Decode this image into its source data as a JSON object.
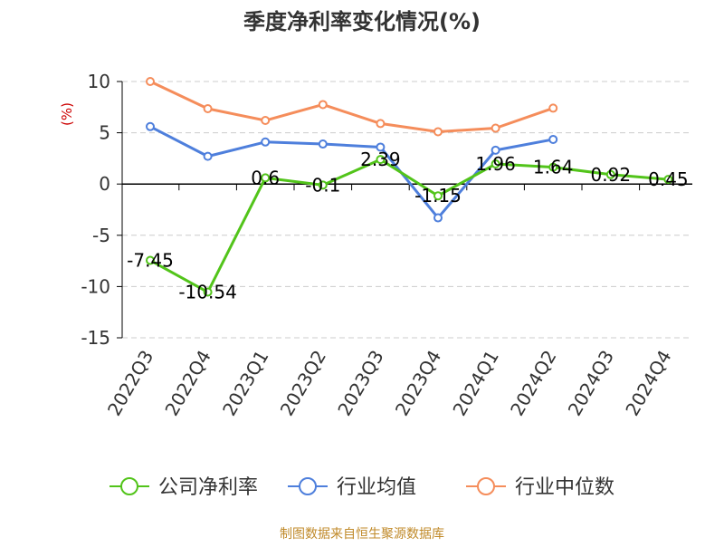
{
  "chart_data": {
    "type": "line",
    "title": "季度净利率变化情况(%)",
    "ylabel": "(%)",
    "categories": [
      "2022Q3",
      "2022Q4",
      "2023Q1",
      "2023Q2",
      "2023Q3",
      "2023Q4",
      "2024Q1",
      "2024Q2",
      "2024Q3",
      "2024Q4"
    ],
    "ylim": [
      -15,
      10
    ],
    "yticks": [
      10,
      5,
      0,
      -5,
      -10,
      -15
    ],
    "grid": true,
    "legend_position": "bottom",
    "series": [
      {
        "name": "公司净利率",
        "color": "#52c41a",
        "values": [
          -7.45,
          -10.54,
          0.6,
          -0.1,
          2.39,
          -1.15,
          1.96,
          1.64,
          0.92,
          0.45
        ],
        "labels": [
          "-7.45",
          "-10.54",
          "0.6",
          "-0.1",
          "2.39",
          "-1.15",
          "1.96",
          "1.64",
          "0.92",
          "0.45"
        ]
      },
      {
        "name": "行业均值",
        "color": "#4e7fdc",
        "values": [
          5.6,
          2.7,
          4.1,
          3.9,
          3.6,
          -3.3,
          3.3,
          4.35,
          null,
          null
        ]
      },
      {
        "name": "行业中位数",
        "color": "#f58d5b",
        "values": [
          10.0,
          7.35,
          6.2,
          7.75,
          5.9,
          5.1,
          5.45,
          7.4,
          null,
          null
        ]
      }
    ]
  },
  "footer": {
    "source_text": "制图数据来自恒生聚源数据库"
  },
  "colors": {
    "title": "#333333",
    "ylabel": "#cc0000",
    "grid": "#cccccc",
    "axis": "#000000",
    "footer": "#c08a2a"
  }
}
